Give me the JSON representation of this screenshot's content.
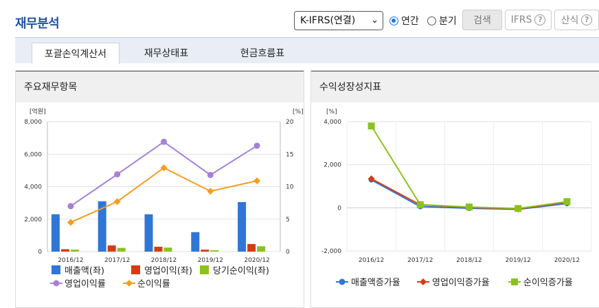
{
  "page_title": "재무분석",
  "controls": {
    "select_value": "K-IFRS(연결)",
    "radio_annual": "연간",
    "radio_quarter": "분기",
    "search_button": "검색",
    "ifrs_button": "IFRS",
    "formula_button": "산식"
  },
  "tabs": [
    {
      "label": "포괄손익계산서",
      "active": true
    },
    {
      "label": "재무상태표",
      "active": false
    },
    {
      "label": "현금흐름표",
      "active": false
    }
  ],
  "left_panel": {
    "title": "주요재무항목"
  },
  "right_panel": {
    "title": "수익성장성지표"
  },
  "colors": {
    "sales": "#2f76d7",
    "op_income": "#d63b12",
    "net_income": "#8cc21f",
    "op_margin": "#a77fd8",
    "net_margin": "#f59d1f",
    "accent": "#2251a3"
  },
  "chart_data": [
    {
      "type": "bar",
      "categories": [
        "2016/12",
        "2017/12",
        "2018/12",
        "2019/12",
        "2020/12"
      ],
      "left_unit": "[억원]",
      "right_unit": "[%]",
      "ylim_left": [
        0,
        8000
      ],
      "ylim_right": [
        0,
        20
      ],
      "left_ticks": [
        "8,000",
        "6,000",
        "4,000",
        "2,000",
        "0"
      ],
      "right_ticks": [
        "20",
        "15",
        "10",
        "5",
        "0"
      ],
      "bar_series": [
        {
          "name": "매출액(좌)",
          "values": [
            2300,
            3100,
            2300,
            1200,
            3050
          ]
        },
        {
          "name": "영업이익(좌)",
          "values": [
            150,
            380,
            300,
            120,
            470
          ]
        },
        {
          "name": "당기순이익(좌)",
          "values": [
            120,
            230,
            250,
            80,
            330
          ]
        }
      ],
      "line_series": [
        {
          "name": "영업이익률",
          "values": [
            7.0,
            11.9,
            16.9,
            11.8,
            16.3
          ]
        },
        {
          "name": "순이익률",
          "values": [
            4.5,
            7.7,
            12.9,
            9.3,
            10.9
          ]
        }
      ],
      "grid": true,
      "legend": "bottom"
    },
    {
      "type": "line",
      "categories": [
        "2016/12",
        "2017/12",
        "2018/12",
        "2019/12",
        "2020/12"
      ],
      "unit": "[%]",
      "ylim": [
        -2000,
        4000
      ],
      "ticks": [
        "4,000",
        "2,000",
        "0",
        "-2,000"
      ],
      "series": [
        {
          "name": "매출액증가율",
          "values": [
            1300,
            60,
            -20,
            -70,
            200
          ]
        },
        {
          "name": "영업이익증가율",
          "values": [
            1350,
            140,
            20,
            -50,
            260
          ]
        },
        {
          "name": "순이익증가율",
          "values": [
            3800,
            150,
            40,
            -30,
            290
          ]
        }
      ],
      "grid": true,
      "legend": "bottom"
    }
  ]
}
